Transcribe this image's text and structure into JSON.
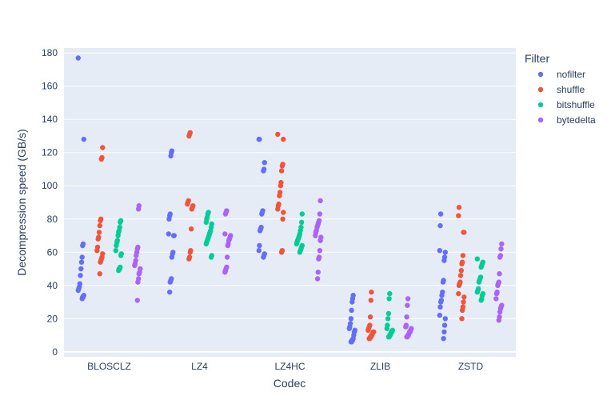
{
  "chart_data": {
    "type": "scatter",
    "xlabel": "Codec",
    "ylabel": "Decompression speed (GB/s)",
    "categories": [
      "BLOSCLZ",
      "LZ4",
      "LZ4HC",
      "ZLIB",
      "ZSTD"
    ],
    "ylim": [
      -3,
      183
    ],
    "yticks": [
      0,
      20,
      40,
      60,
      80,
      100,
      120,
      140,
      160,
      180
    ],
    "grid": true,
    "legend": {
      "title": "Filter",
      "position": "right"
    },
    "background_color": "#e5ecf6",
    "series": [
      {
        "name": "nofilter",
        "color": "#636efa",
        "points": {
          "BLOSCLZ": [
            177,
            128,
            65,
            64,
            57,
            54,
            50,
            46,
            41,
            39,
            38,
            37,
            34,
            33,
            33,
            32
          ],
          "LZ4": [
            121,
            120,
            118,
            83,
            82,
            80,
            71,
            70,
            70,
            60,
            59,
            57,
            44,
            43,
            42,
            36
          ],
          "LZ4HC": [
            128,
            128,
            114,
            110,
            109,
            85,
            84,
            83,
            75,
            74,
            73,
            64,
            61,
            59,
            58,
            57
          ],
          "ZLIB": [
            34,
            32,
            30,
            25,
            20,
            17,
            15,
            14,
            13,
            12,
            10,
            8,
            7,
            7,
            6,
            6
          ],
          "ZSTD": [
            83,
            76,
            61,
            60,
            57,
            55,
            43,
            42,
            36,
            34,
            31,
            30,
            27,
            22,
            20,
            16,
            12,
            8
          ]
        }
      },
      {
        "name": "shuffle",
        "color": "#ef553b",
        "points": {
          "BLOSCLZ": [
            123,
            117,
            116,
            80,
            79,
            76,
            72,
            69,
            68,
            63,
            61,
            59,
            57,
            56,
            55,
            54,
            47
          ],
          "LZ4": [
            132,
            131,
            130,
            91,
            90,
            89,
            88,
            87,
            86,
            74,
            61,
            60,
            57,
            56
          ],
          "LZ4HC": [
            131,
            128,
            113,
            112,
            109,
            102,
            100,
            96,
            94,
            89,
            88,
            86,
            84,
            80,
            61,
            60
          ],
          "ZLIB": [
            36,
            31,
            21,
            16,
            15,
            14,
            13,
            12,
            12,
            11,
            10,
            10,
            9,
            9,
            8,
            8
          ],
          "ZSTD": [
            87,
            82,
            72,
            72,
            58,
            54,
            53,
            49,
            46,
            42,
            41,
            40,
            35,
            33,
            30,
            27,
            25,
            20
          ]
        }
      },
      {
        "name": "bitshuffle",
        "color": "#00cc96",
        "points": {
          "BLOSCLZ": [
            79,
            78,
            75,
            73,
            72,
            70,
            67,
            66,
            64,
            61,
            59,
            58,
            51,
            50,
            50,
            49
          ],
          "LZ4": [
            84,
            83,
            81,
            80,
            78,
            77,
            75,
            73,
            72,
            71,
            70,
            69,
            68,
            67,
            66,
            65,
            58,
            57
          ],
          "LZ4HC": [
            83,
            78,
            75,
            73,
            71,
            70,
            69,
            68,
            67,
            66,
            65,
            64,
            63,
            62,
            61,
            60
          ],
          "ZLIB": [
            35,
            32,
            23,
            20,
            16,
            14,
            13,
            12,
            12,
            11,
            10,
            10,
            9,
            9
          ],
          "ZSTD": [
            56,
            54,
            53,
            52,
            51,
            45,
            44,
            43,
            42,
            38,
            37,
            36,
            35,
            34,
            32,
            31
          ]
        }
      },
      {
        "name": "bytedelta",
        "color": "#ab63fa",
        "points": {
          "BLOSCLZ": [
            88,
            86,
            63,
            62,
            60,
            58,
            55,
            53,
            52,
            50,
            48,
            47,
            44,
            42,
            31
          ],
          "LZ4": [
            85,
            84,
            83,
            71,
            70,
            69,
            68,
            67,
            65,
            64,
            57,
            51,
            50,
            49,
            48
          ],
          "LZ4HC": [
            91,
            83,
            79,
            78,
            77,
            76,
            75,
            73,
            72,
            70,
            69,
            67,
            61,
            57,
            56,
            48,
            44
          ],
          "ZLIB": [
            32,
            28,
            21,
            16,
            15,
            14,
            13,
            12,
            12,
            11,
            10,
            10,
            9,
            9
          ],
          "ZSTD": [
            65,
            62,
            58,
            57,
            47,
            42,
            41,
            40,
            36,
            35,
            32,
            28,
            27,
            26,
            24,
            21,
            19
          ]
        }
      }
    ]
  }
}
